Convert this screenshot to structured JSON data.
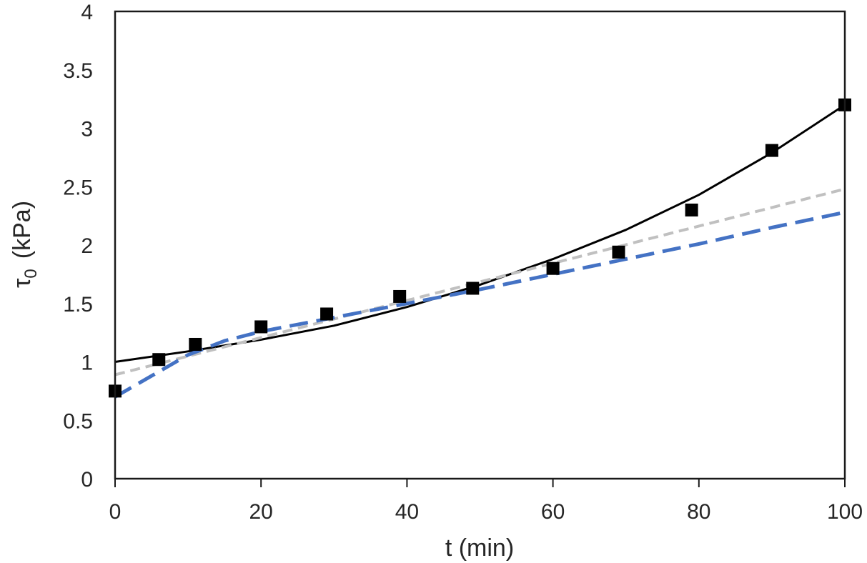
{
  "chart_data": {
    "type": "scatter",
    "xlabel": "t (min)",
    "ylabel": {
      "main": "τ",
      "subscript": "0",
      "unit": "(kPa)"
    },
    "xlim": [
      0,
      100
    ],
    "ylim": [
      0,
      4
    ],
    "x_ticks": [
      0,
      20,
      40,
      60,
      80,
      100
    ],
    "y_ticks": [
      0,
      0.5,
      1,
      1.5,
      2,
      2.5,
      3,
      3.5,
      4
    ],
    "y_tick_labels": [
      "0",
      "0.5",
      "1",
      "1.5",
      "2",
      "2.5",
      "3",
      "3.5",
      "4"
    ],
    "grid": false,
    "legend": "none",
    "series": [
      {
        "kind": "points",
        "marker": "square",
        "color": "#000000",
        "x": [
          0,
          6,
          11,
          20,
          29,
          39,
          49,
          60,
          69,
          79,
          90,
          100
        ],
        "y": [
          0.75,
          1.02,
          1.15,
          1.3,
          1.41,
          1.56,
          1.63,
          1.8,
          1.94,
          2.3,
          2.81,
          3.2
        ]
      },
      {
        "kind": "line",
        "style": "solid",
        "color": "#000000",
        "x": [
          0,
          10,
          20,
          30,
          40,
          50,
          60,
          70,
          80,
          90,
          100
        ],
        "y": [
          1.0,
          1.09,
          1.19,
          1.31,
          1.47,
          1.66,
          1.88,
          2.13,
          2.43,
          2.79,
          3.2
        ]
      },
      {
        "kind": "line",
        "style": "dashed",
        "color": "#c0c0c0",
        "x": [
          0,
          100
        ],
        "y": [
          0.89,
          2.48
        ]
      },
      {
        "kind": "line",
        "style": "dashed",
        "color": "#4472c4",
        "x": [
          0,
          5,
          10,
          15,
          20,
          30,
          40,
          50,
          60,
          70,
          80,
          90,
          100
        ],
        "y": [
          0.7,
          0.88,
          1.06,
          1.18,
          1.26,
          1.38,
          1.5,
          1.62,
          1.75,
          1.88,
          2.01,
          2.15,
          2.28
        ]
      }
    ]
  }
}
